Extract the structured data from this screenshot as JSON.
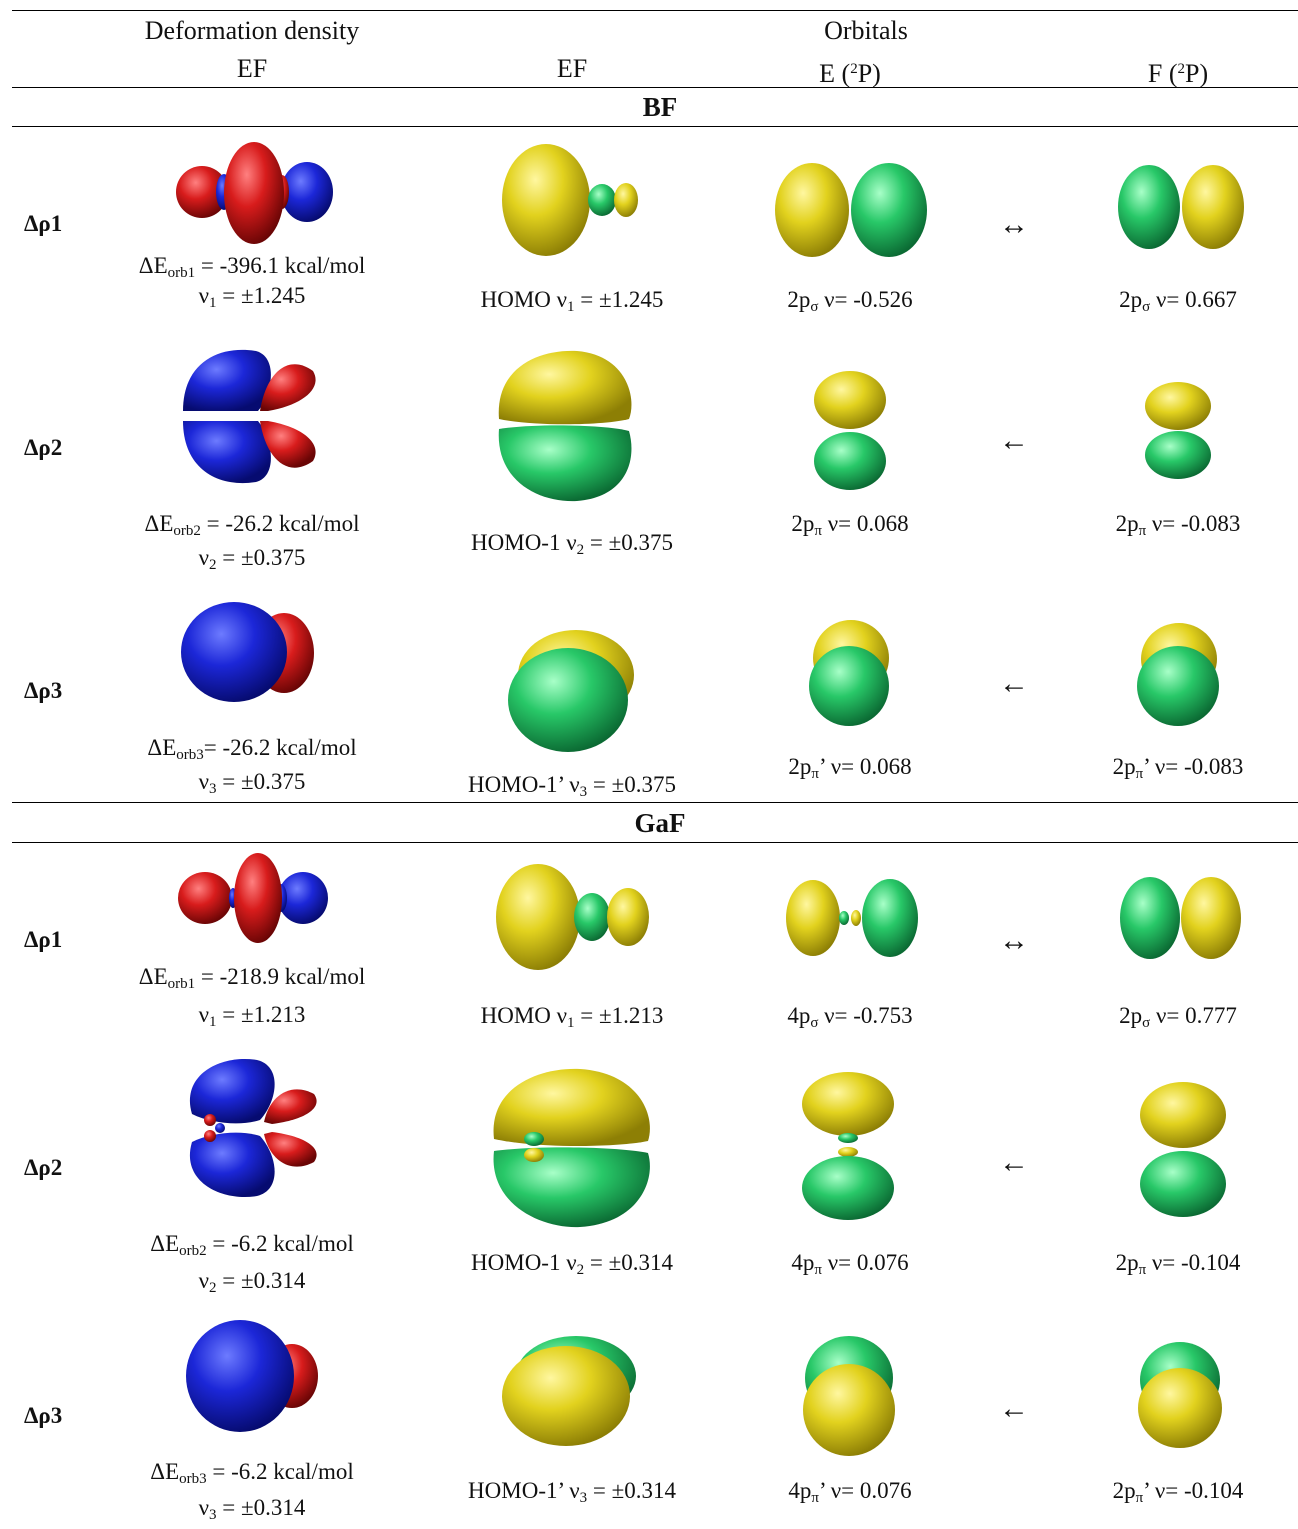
{
  "header": {
    "deformation_density": "Deformation density",
    "orbitals": "Orbitals",
    "col_ef_1": "EF",
    "col_ef_2": "EF",
    "col_e": "E (",
    "col_e_sup": "2",
    "col_e_end": "P)",
    "col_f": "F (",
    "col_f_sup": "2",
    "col_f_end": "P)"
  },
  "sections": [
    {
      "title": "BF",
      "rows": [
        {
          "label": "Δρ1",
          "energy_pre": "ΔE",
          "energy_sub": "orb1",
          "energy_post": " = -396.1 kcal/mol",
          "nu_pre": "ν",
          "nu_sub": "1",
          "nu_post": " = ±1.245",
          "homo": "HOMO ν",
          "homo_sub": "1",
          "homo_post": " = ±1.245",
          "e_pre": "2p",
          "e_sub": "σ",
          "e_post": " ν= -0.526",
          "f_pre": "2p",
          "f_sub": "σ",
          "f_post": " ν= 0.667",
          "arrow": "↔"
        },
        {
          "label": "Δρ2",
          "energy_pre": "ΔE",
          "energy_sub": "orb2",
          "energy_post": " = -26.2 kcal/mol",
          "nu_pre": "ν",
          "nu_sub": "2",
          "nu_post": " = ±0.375",
          "homo": "HOMO-1 ν",
          "homo_sub": "2",
          "homo_post": " = ±0.375",
          "e_pre": "2p",
          "e_sub": "π",
          "e_post": " ν= 0.068",
          "f_pre": "2p",
          "f_sub": "π",
          "f_post": " ν= -0.083",
          "arrow": "←"
        },
        {
          "label": "Δρ3",
          "energy_pre": "ΔE",
          "energy_sub": "orb3",
          "energy_post": "= -26.2 kcal/mol",
          "nu_pre": "ν",
          "nu_sub": "3",
          "nu_post": " = ±0.375",
          "homo": "HOMO-1’ ν",
          "homo_sub": "3",
          "homo_post": " = ±0.375",
          "e_pre": "2p",
          "e_sub": "π",
          "e_post": "’ ν= 0.068",
          "f_pre": "2p",
          "f_sub": "π",
          "f_post": "’ ν= -0.083",
          "arrow": "←"
        }
      ]
    },
    {
      "title": "GaF",
      "rows": [
        {
          "label": "Δρ1",
          "energy_pre": "ΔE",
          "energy_sub": "orb1",
          "energy_post": " = -218.9 kcal/mol",
          "nu_pre": "ν",
          "nu_sub": "1",
          "nu_post": " = ±1.213",
          "homo": "HOMO ν",
          "homo_sub": "1",
          "homo_post": " = ±1.213",
          "e_pre": "4p",
          "e_sub": "σ",
          "e_post": " ν= -0.753",
          "f_pre": "2p",
          "f_sub": "σ",
          "f_post": " ν= 0.777",
          "arrow": "↔"
        },
        {
          "label": "Δρ2",
          "energy_pre": "ΔE",
          "energy_sub": "orb2",
          "energy_post": " = -6.2 kcal/mol",
          "nu_pre": "ν",
          "nu_sub": "2",
          "nu_post": " = ±0.314",
          "homo": "HOMO-1 ν",
          "homo_sub": "2",
          "homo_post": " = ±0.314",
          "e_pre": "4p",
          "e_sub": "π",
          "e_post": " ν= 0.076",
          "f_pre": "2p",
          "f_sub": "π",
          "f_post": " ν= -0.104",
          "arrow": "←"
        },
        {
          "label": "Δρ3",
          "energy_pre": "ΔE",
          "energy_sub": "orb3",
          "energy_post": " = -6.2 kcal/mol",
          "nu_pre": "ν",
          "nu_sub": "3",
          "nu_post": " = ±0.314",
          "homo": "HOMO-1’ ν",
          "homo_sub": "3",
          "homo_post": " = ±0.314",
          "e_pre": "4p",
          "e_sub": "π",
          "e_post": "’ ν= 0.076",
          "f_pre": "2p",
          "f_sub": "π",
          "f_post": "’ ν= -0.104",
          "arrow": "←"
        }
      ]
    }
  ],
  "colors": {
    "deformation_positive": "#1f2bd6",
    "deformation_negative": "#d81c1c",
    "orbital_phase_a": "#d9cc1e",
    "orbital_phase_b": "#26c466"
  }
}
